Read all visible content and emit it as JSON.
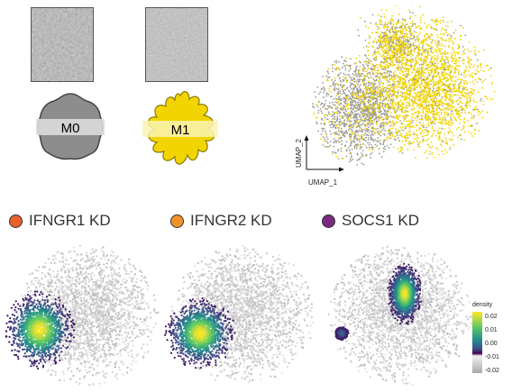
{
  "cells": [
    {
      "label": "M0",
      "body_color": "#8d8d8d",
      "band_color": "#dcdcdc"
    },
    {
      "label": "M1",
      "body_color": "#f2d400",
      "band_color": "#fbf3b4"
    }
  ],
  "umap": {
    "x_label": "UMAP_1",
    "y_label": "UMAP_2",
    "colors": {
      "m0": "#9a9a9a",
      "m1": "#f2d400"
    }
  },
  "panels": [
    {
      "label": "IFNGR1 KD",
      "color": "#e8602c"
    },
    {
      "label": "IFNGR2 KD",
      "color": "#f0922b"
    },
    {
      "label": "SOCS1 KD",
      "color": "#7b2a7f"
    }
  ],
  "legend": {
    "title": "density",
    "ticks": [
      "0.02",
      "0.01",
      "0.00",
      "-0.01",
      "-0.02"
    ],
    "colors": [
      "#fde725",
      "#5ec962",
      "#21918c",
      "#3b528b",
      "#440154"
    ]
  }
}
